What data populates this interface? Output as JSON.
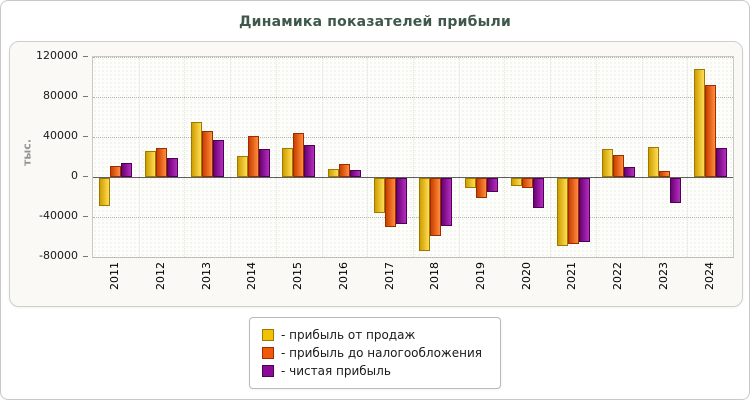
{
  "chart_data": {
    "type": "bar",
    "title": "Динамика показателей прибыли",
    "ylabel": "тыс.",
    "categories": [
      "2011",
      "2012",
      "2013",
      "2014",
      "2015",
      "2016",
      "2017",
      "2018",
      "2019",
      "2020",
      "2021",
      "2022",
      "2023",
      "2024"
    ],
    "yticks": [
      120000,
      80000,
      40000,
      0,
      -40000,
      -80000
    ],
    "ylim": [
      -80000,
      120000
    ],
    "grid": "dotted",
    "legend_position": "bottom",
    "series": [
      {
        "name": "прибыль от продаж",
        "legend_label": "- прибыль от продаж",
        "color": "#f2c105",
        "color_dark": "#cf9e00",
        "color_light": "#ffdd55",
        "border": "#9c7a00",
        "values": [
          -28000,
          26000,
          55000,
          21000,
          29000,
          8000,
          -35000,
          -73000,
          -10000,
          -8000,
          -68000,
          28000,
          30000,
          108000
        ]
      },
      {
        "name": "прибыль до налогообложения",
        "legend_label": "- прибыль до налогообложения",
        "color": "#f1580a",
        "color_dark": "#cc3f00",
        "color_light": "#ff8c3d",
        "border": "#992f00",
        "values": [
          11000,
          29000,
          46000,
          41000,
          44000,
          13000,
          -49000,
          -58000,
          -20000,
          -10000,
          -66000,
          22000,
          6000,
          92000
        ]
      },
      {
        "name": "чистая прибыль",
        "legend_label": "- чистая прибыль",
        "color": "#8d0a96",
        "color_dark": "#6b0372",
        "color_light": "#b52cc0",
        "border": "#4d0253",
        "values": [
          14000,
          19000,
          37000,
          28000,
          32000,
          7000,
          -46000,
          -48000,
          -14000,
          -30000,
          -64000,
          10000,
          -25000,
          29000
        ]
      }
    ]
  }
}
